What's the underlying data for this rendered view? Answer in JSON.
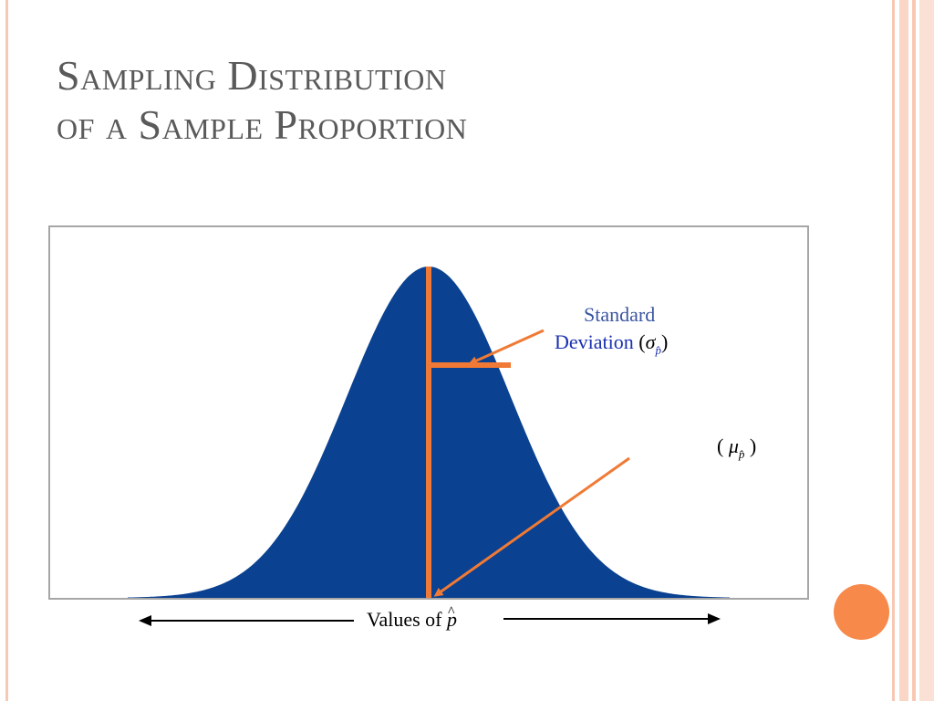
{
  "title": {
    "line1": "Sampling Distribution",
    "line2": "of a Sample Proportion"
  },
  "diagram": {
    "sd_label_line1": "Standard",
    "sd_label_line2": "Deviation",
    "sd_symbol": "σ",
    "sd_subscript": "p̂",
    "mean_symbol": "μ",
    "mean_subscript": "p̂",
    "x_axis_label": "Values of",
    "x_axis_symbol": "p",
    "colors": {
      "curve_fill": "#0a4190",
      "marker": "#f07a35",
      "frame": "#a6a6a6",
      "title": "#5a5a5a"
    }
  }
}
